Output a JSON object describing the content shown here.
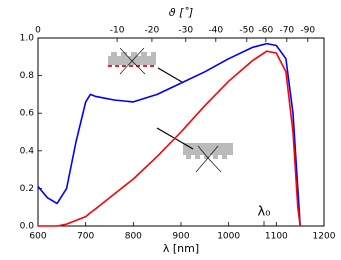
{
  "chart_data": {
    "type": "line",
    "xlabel": "λ [nm]",
    "x2label": "ϑ [˚]",
    "annotation": "λ₀",
    "x": [
      600,
      620,
      640,
      660,
      680,
      700,
      710,
      720,
      740,
      760,
      800,
      850,
      900,
      950,
      1000,
      1050,
      1080,
      1100,
      1120,
      1135,
      1145,
      1150
    ],
    "series": [
      {
        "color": "#0000ff",
        "values": [
          0.21,
          0.15,
          0.12,
          0.2,
          0.45,
          0.66,
          0.7,
          0.69,
          0.68,
          0.67,
          0.66,
          0.7,
          0.76,
          0.82,
          0.89,
          0.95,
          0.97,
          0.96,
          0.89,
          0.6,
          0.2,
          0
        ]
      },
      {
        "color": "#ff0000",
        "values": [
          0,
          0,
          0,
          0.01,
          0.03,
          0.05,
          0.07,
          0.09,
          0.13,
          0.17,
          0.25,
          0.37,
          0.5,
          0.64,
          0.77,
          0.88,
          0.93,
          0.92,
          0.82,
          0.5,
          0.1,
          0
        ]
      }
    ],
    "xlim": [
      600,
      1200
    ],
    "xticks": [
      600,
      700,
      800,
      900,
      1000,
      1100,
      1200
    ],
    "ylim": [
      0,
      1
    ],
    "yticks": [
      {
        "value": 0,
        "label": "0.0"
      },
      {
        "value": 0.2,
        "label": "0.2"
      },
      {
        "value": 0.4,
        "label": "0.4"
      },
      {
        "value": 0.6,
        "label": "0.6"
      },
      {
        "value": 0.8,
        "label": "0.8"
      },
      {
        "value": 1,
        "label": "1.0"
      }
    ],
    "x2ticks": [
      {
        "value": 600,
        "label": "0"
      },
      {
        "value": 766,
        "label": "-10"
      },
      {
        "value": 839,
        "label": "-20"
      },
      {
        "value": 910,
        "label": "-30"
      },
      {
        "value": 973,
        "label": "-40"
      },
      {
        "value": 1038,
        "label": "-50"
      },
      {
        "value": 1078,
        "label": "-60"
      },
      {
        "value": 1122,
        "label": "-70"
      },
      {
        "value": 1166,
        "label": "-90"
      }
    ]
  }
}
